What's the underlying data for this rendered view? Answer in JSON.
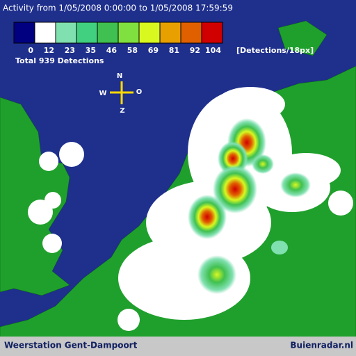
{
  "header": {
    "title": "Activity from 1/05/2008 0:00:00 to 1/05/2008 17:59:59",
    "total": "Total 939 Detections"
  },
  "legend": {
    "ticks": [
      0,
      12,
      23,
      35,
      46,
      58,
      69,
      81,
      92,
      104
    ],
    "unit": "[Detections/18px]",
    "colors": [
      "#000080",
      "#ffffff",
      "#80e0b0",
      "#40d080",
      "#40c050",
      "#80e040",
      "#d8f820",
      "#e8a000",
      "#e06000",
      "#d00000"
    ]
  },
  "compass": {
    "north": "N",
    "west": "W",
    "east": "O",
    "south": "Z"
  },
  "footer": {
    "left": "Weerstation Gent-Dampoort",
    "right": "Buienradar.nl"
  }
}
